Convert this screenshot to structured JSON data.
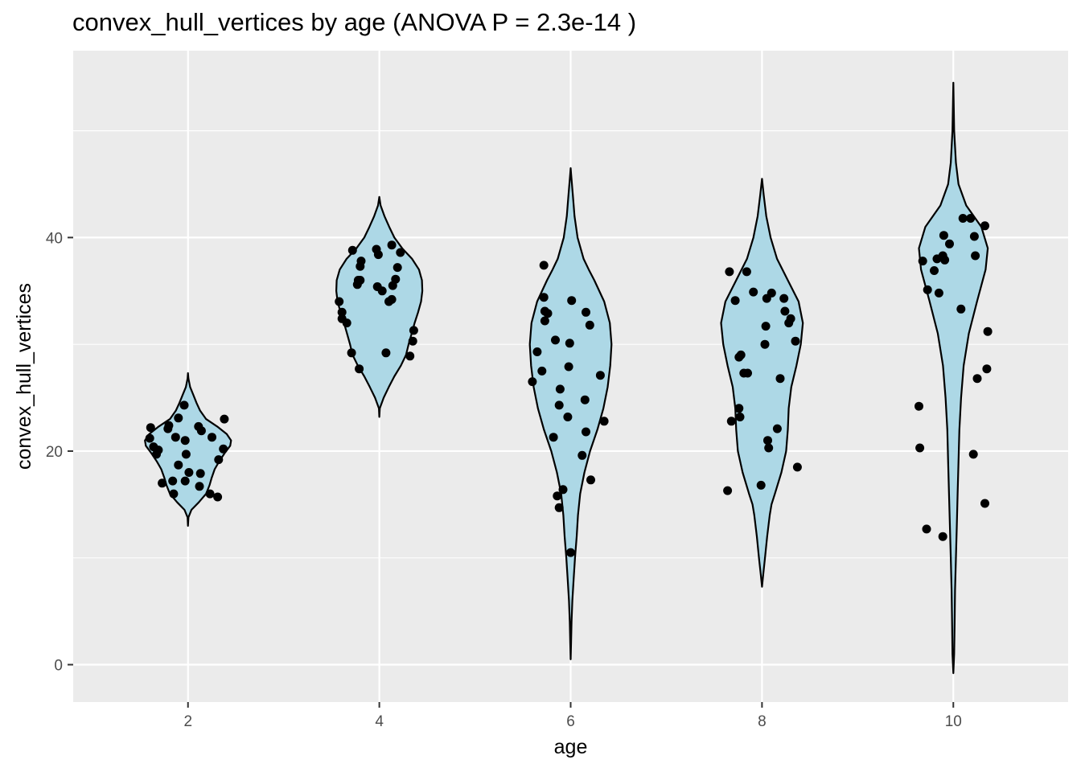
{
  "chart_data": {
    "type": "violin",
    "title": "convex_hull_vertices by age (ANOVA P = 2.3e-14 )",
    "xlabel": "age",
    "ylabel": "convex_hull_vertices",
    "x_ticks": [
      2,
      4,
      6,
      8,
      10
    ],
    "y_ticks": [
      0,
      20,
      40
    ],
    "xlim": [
      0.8,
      11.2
    ],
    "ylim": [
      -3.5,
      57.5
    ],
    "grid": true,
    "legend": "none",
    "colors": {
      "panel": "#ebebeb",
      "grid": "#ffffff",
      "violin_fill": "#add8e6",
      "violin_stroke": "#000000",
      "point": "#000000"
    },
    "groups": [
      {
        "x": 2,
        "profile": [
          [
            13,
            0
          ],
          [
            13.8,
            0.01
          ],
          [
            14.5,
            0.08
          ],
          [
            15.2,
            0.25
          ],
          [
            16,
            0.42
          ],
          [
            16.8,
            0.5
          ],
          [
            17.5,
            0.55
          ],
          [
            18.3,
            0.62
          ],
          [
            19,
            0.72
          ],
          [
            19.8,
            0.85
          ],
          [
            20.5,
            0.98
          ],
          [
            21,
            1.0
          ],
          [
            21.6,
            0.9
          ],
          [
            22.3,
            0.68
          ],
          [
            23,
            0.42
          ],
          [
            23.8,
            0.28
          ],
          [
            24.5,
            0.2
          ],
          [
            25.3,
            0.12
          ],
          [
            26,
            0.05
          ],
          [
            26.8,
            0.01
          ],
          [
            27.3,
            0
          ]
        ],
        "points": [
          [
            1.61,
            22.2
          ],
          [
            1.6,
            21.2
          ],
          [
            1.64,
            20.4
          ],
          [
            1.67,
            19.7
          ],
          [
            1.69,
            20.1
          ],
          [
            1.73,
            17
          ],
          [
            1.79,
            22.1
          ],
          [
            1.8,
            22.4
          ],
          [
            1.84,
            17.2
          ],
          [
            1.85,
            16
          ],
          [
            1.87,
            21.3
          ],
          [
            1.9,
            18.7
          ],
          [
            1.9,
            23.1
          ],
          [
            1.96,
            24.3
          ],
          [
            1.97,
            17.2
          ],
          [
            1.97,
            21
          ],
          [
            1.98,
            19.7
          ],
          [
            2.01,
            18
          ],
          [
            2.11,
            22.3
          ],
          [
            2.14,
            21.9
          ],
          [
            2.12,
            16.7
          ],
          [
            2.13,
            17.9
          ],
          [
            2.23,
            16
          ],
          [
            2.25,
            21.3
          ],
          [
            2.31,
            15.7
          ],
          [
            2.32,
            19.2
          ],
          [
            2.37,
            20.2
          ],
          [
            2.38,
            23
          ]
        ]
      },
      {
        "x": 4,
        "profile": [
          [
            23.2,
            0
          ],
          [
            24,
            0.01
          ],
          [
            25,
            0.1
          ],
          [
            26,
            0.22
          ],
          [
            27,
            0.35
          ],
          [
            28,
            0.5
          ],
          [
            29,
            0.62
          ],
          [
            30,
            0.68
          ],
          [
            31,
            0.75
          ],
          [
            32,
            0.82
          ],
          [
            33,
            0.9
          ],
          [
            34,
            0.97
          ],
          [
            35,
            1.0
          ],
          [
            36,
            0.99
          ],
          [
            37,
            0.92
          ],
          [
            38,
            0.76
          ],
          [
            39,
            0.53
          ],
          [
            40,
            0.35
          ],
          [
            41,
            0.23
          ],
          [
            42,
            0.12
          ],
          [
            43,
            0.03
          ],
          [
            43.8,
            0
          ]
        ],
        "points": [
          [
            3.58,
            34
          ],
          [
            3.61,
            32.4
          ],
          [
            3.61,
            33
          ],
          [
            3.66,
            32
          ],
          [
            3.72,
            38.8
          ],
          [
            3.71,
            29.2
          ],
          [
            3.78,
            36
          ],
          [
            3.77,
            35.6
          ],
          [
            3.8,
            37.3
          ],
          [
            3.81,
            37.8
          ],
          [
            3.79,
            27.7
          ],
          [
            3.8,
            36
          ],
          [
            3.97,
            38.9
          ],
          [
            3.99,
            38.4
          ],
          [
            3.98,
            35.4
          ],
          [
            4.03,
            35
          ],
          [
            4.07,
            29.2
          ],
          [
            4.1,
            34
          ],
          [
            4.13,
            34.2
          ],
          [
            4.13,
            39.3
          ],
          [
            4.14,
            35.5
          ],
          [
            4.17,
            36.1
          ],
          [
            4.19,
            37.2
          ],
          [
            4.22,
            38.6
          ],
          [
            4.32,
            28.9
          ],
          [
            4.35,
            30.3
          ],
          [
            4.36,
            31.3
          ]
        ]
      },
      {
        "x": 6,
        "profile": [
          [
            0.5,
            0
          ],
          [
            2,
            0.01
          ],
          [
            4,
            0.02
          ],
          [
            6,
            0.04
          ],
          [
            8,
            0.07
          ],
          [
            10,
            0.1
          ],
          [
            12,
            0.14
          ],
          [
            14,
            0.17
          ],
          [
            16,
            0.22
          ],
          [
            18,
            0.32
          ],
          [
            20,
            0.45
          ],
          [
            22,
            0.62
          ],
          [
            24,
            0.76
          ],
          [
            26,
            0.86
          ],
          [
            28,
            0.92
          ],
          [
            30,
            0.95
          ],
          [
            32,
            0.91
          ],
          [
            34,
            0.78
          ],
          [
            36,
            0.55
          ],
          [
            37,
            0.42
          ],
          [
            38,
            0.3
          ],
          [
            40,
            0.16
          ],
          [
            42,
            0.09
          ],
          [
            44,
            0.05
          ],
          [
            46,
            0.01
          ],
          [
            46.5,
            0
          ]
        ],
        "points": [
          [
            5.6,
            26.5
          ],
          [
            5.65,
            29.3
          ],
          [
            5.7,
            27.5
          ],
          [
            5.72,
            37.4
          ],
          [
            5.73,
            33.1
          ],
          [
            5.73,
            32.2
          ],
          [
            5.72,
            34.4
          ],
          [
            5.76,
            32.9
          ],
          [
            5.82,
            21.3
          ],
          [
            5.84,
            30.4
          ],
          [
            5.86,
            15.8
          ],
          [
            5.88,
            14.7
          ],
          [
            5.88,
            24.3
          ],
          [
            5.89,
            25.8
          ],
          [
            5.92,
            16.4
          ],
          [
            5.97,
            23.2
          ],
          [
            5.98,
            27.9
          ],
          [
            5.99,
            30.1
          ],
          [
            6.01,
            34.1
          ],
          [
            6,
            10.5
          ],
          [
            6.12,
            19.6
          ],
          [
            6.15,
            24.8
          ],
          [
            6.16,
            33
          ],
          [
            6.16,
            21.8
          ],
          [
            6.2,
            31.8
          ],
          [
            6.21,
            17.3
          ],
          [
            6.31,
            27.1
          ],
          [
            6.35,
            22.8
          ]
        ]
      },
      {
        "x": 8,
        "profile": [
          [
            7.3,
            0
          ],
          [
            8.5,
            0.03
          ],
          [
            10,
            0.07
          ],
          [
            12,
            0.12
          ],
          [
            14,
            0.18
          ],
          [
            15,
            0.22
          ],
          [
            16,
            0.3
          ],
          [
            18,
            0.45
          ],
          [
            20,
            0.56
          ],
          [
            22,
            0.6
          ],
          [
            24,
            0.62
          ],
          [
            26,
            0.68
          ],
          [
            28,
            0.8
          ],
          [
            30,
            0.9
          ],
          [
            32,
            0.95
          ],
          [
            34,
            0.85
          ],
          [
            36,
            0.6
          ],
          [
            38,
            0.35
          ],
          [
            40,
            0.2
          ],
          [
            42,
            0.1
          ],
          [
            44,
            0.04
          ],
          [
            45.5,
            0
          ]
        ],
        "points": [
          [
            7.64,
            16.3
          ],
          [
            7.66,
            36.8
          ],
          [
            7.68,
            22.8
          ],
          [
            7.72,
            34.1
          ],
          [
            7.76,
            24
          ],
          [
            7.76,
            28.8
          ],
          [
            7.77,
            23.2
          ],
          [
            7.78,
            29
          ],
          [
            7.81,
            27.3
          ],
          [
            7.84,
            36.8
          ],
          [
            7.85,
            27.3
          ],
          [
            7.91,
            34.9
          ],
          [
            7.99,
            16.8
          ],
          [
            8.03,
            30
          ],
          [
            8.05,
            34.3
          ],
          [
            8.04,
            31.7
          ],
          [
            8.06,
            21
          ],
          [
            8.07,
            20.3
          ],
          [
            8.1,
            34.8
          ],
          [
            8.16,
            22.1
          ],
          [
            8.19,
            26.8
          ],
          [
            8.23,
            34.3
          ],
          [
            8.24,
            33.1
          ],
          [
            8.28,
            32
          ],
          [
            8.3,
            32.4
          ],
          [
            8.35,
            30.3
          ],
          [
            8.37,
            18.5
          ]
        ]
      },
      {
        "x": 10,
        "profile": [
          [
            -0.8,
            0
          ],
          [
            1,
            0.02
          ],
          [
            4,
            0.03
          ],
          [
            7,
            0.04
          ],
          [
            10,
            0.06
          ],
          [
            13,
            0.08
          ],
          [
            16,
            0.1
          ],
          [
            19,
            0.12
          ],
          [
            22,
            0.14
          ],
          [
            25,
            0.18
          ],
          [
            28,
            0.24
          ],
          [
            31,
            0.36
          ],
          [
            34,
            0.55
          ],
          [
            37,
            0.75
          ],
          [
            39,
            0.8
          ],
          [
            41,
            0.65
          ],
          [
            43,
            0.3
          ],
          [
            45,
            0.12
          ],
          [
            47,
            0.06
          ],
          [
            50,
            0.02
          ],
          [
            54.5,
            0
          ]
        ],
        "points": [
          [
            9.64,
            24.2
          ],
          [
            9.65,
            20.3
          ],
          [
            9.68,
            37.8
          ],
          [
            9.72,
            12.7
          ],
          [
            9.73,
            35.1
          ],
          [
            9.8,
            36.9
          ],
          [
            9.83,
            38
          ],
          [
            9.85,
            34.8
          ],
          [
            9.9,
            40.2
          ],
          [
            9.89,
            38.3
          ],
          [
            9.89,
            12
          ],
          [
            9.91,
            37.9
          ],
          [
            9.96,
            39.4
          ],
          [
            10.08,
            33.3
          ],
          [
            10.1,
            41.8
          ],
          [
            10.18,
            41.8
          ],
          [
            10.21,
            19.7
          ],
          [
            10.22,
            40.1
          ],
          [
            10.23,
            38.3
          ],
          [
            10.25,
            26.8
          ],
          [
            10.33,
            15.1
          ],
          [
            10.33,
            41.1
          ],
          [
            10.35,
            27.7
          ],
          [
            10.36,
            31.2
          ]
        ]
      }
    ],
    "violin_max_halfwidth": 0.45
  }
}
